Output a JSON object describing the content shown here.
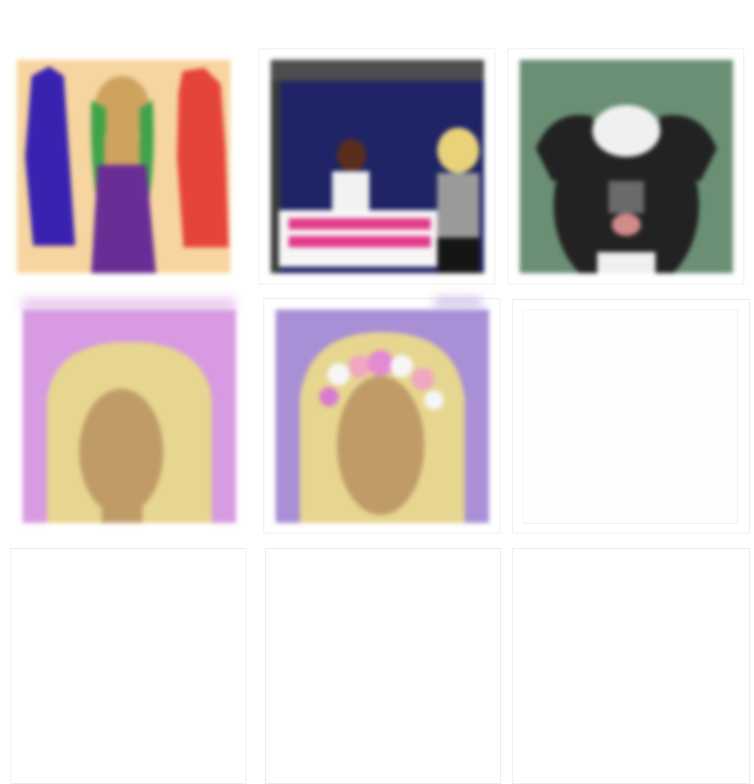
{
  "gallery": {
    "tiles": [
      {
        "id": 1,
        "subject": "purple-gown-doll",
        "accent": "#6a2d96",
        "bg": "#f7d5a0"
      },
      {
        "id": 2,
        "subject": "classroom-scene",
        "accent": "#1f2466",
        "bg": "#4d4d4d"
      },
      {
        "id": 3,
        "subject": "black-white-dog",
        "accent": "#2a2a2a",
        "bg": "#6a8f74"
      },
      {
        "id": 4,
        "subject": "blonde-avatar-pink",
        "accent": "#e6d68f",
        "bg": "#d79ae3"
      },
      {
        "id": 5,
        "subject": "flower-crown-avatar",
        "accent": "#e6d68f",
        "bg": "#a98fd6"
      },
      {
        "id": 6,
        "subject": "empty",
        "accent": "",
        "bg": "#ffffff"
      },
      {
        "id": 7,
        "subject": "empty",
        "accent": "",
        "bg": "#ffffff"
      },
      {
        "id": 8,
        "subject": "empty",
        "accent": "",
        "bg": "#ffffff"
      },
      {
        "id": 9,
        "subject": "empty",
        "accent": "",
        "bg": "#ffffff"
      }
    ]
  }
}
